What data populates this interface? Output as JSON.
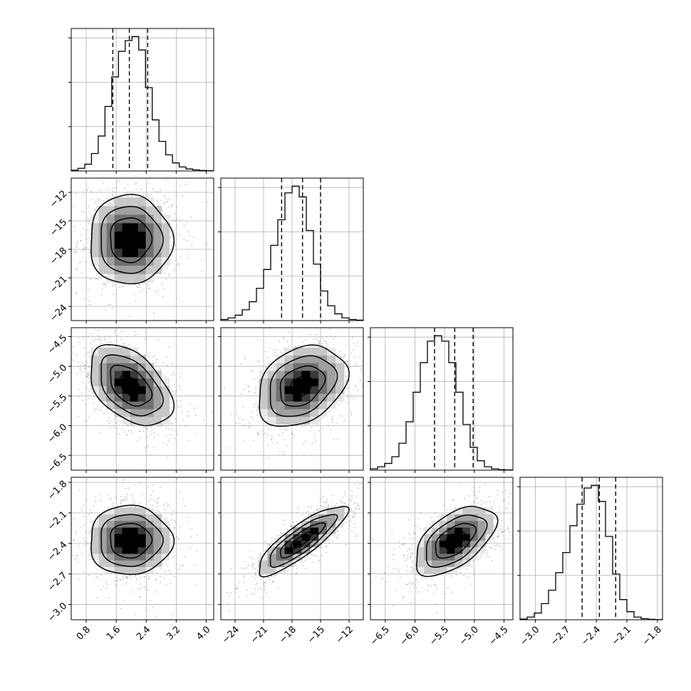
{
  "chart_data": [
    {
      "type": "histogram",
      "param": "p0",
      "xlim": [
        0.4,
        4.2
      ],
      "ylim": [
        0,
        1.06
      ],
      "grid": true,
      "x_ticks": [
        {
          "label": "0.8",
          "value": 0.8
        },
        {
          "label": "1.6",
          "value": 1.6
        },
        {
          "label": "2.4",
          "value": 2.4
        },
        {
          "label": "3.2",
          "value": 3.2
        },
        {
          "label": "4.0",
          "value": 4.0
        }
      ],
      "quantile_lines": [
        1.51,
        1.95,
        2.44
      ],
      "bins": {
        "start": 0.4,
        "width": 0.18,
        "counts": [
          0.005,
          0.02,
          0.05,
          0.13,
          0.26,
          0.48,
          0.7,
          0.89,
          0.97,
          1.0,
          0.9,
          0.62,
          0.38,
          0.22,
          0.12,
          0.06,
          0.03,
          0.015,
          0.008,
          0.004,
          0.002
        ]
      }
    },
    {
      "type": "histogram",
      "param": "p1",
      "xlim": [
        -25.5,
        -10.5
      ],
      "ylim": [
        0,
        1.06
      ],
      "grid": true,
      "x_ticks": [
        {
          "label": "−24",
          "value": -24
        },
        {
          "label": "−21",
          "value": -21
        },
        {
          "label": "−18",
          "value": -18
        },
        {
          "label": "−15",
          "value": -15
        },
        {
          "label": "−12",
          "value": -12
        }
      ],
      "quantile_lines": [
        -19.1,
        -16.9,
        -15.0
      ],
      "bins": {
        "start": -25.5,
        "width": 0.75,
        "counts": [
          0.008,
          0.02,
          0.04,
          0.08,
          0.14,
          0.24,
          0.38,
          0.56,
          0.75,
          0.95,
          1.0,
          0.92,
          0.67,
          0.42,
          0.22,
          0.11,
          0.05,
          0.02,
          0.008,
          0.003
        ]
      }
    },
    {
      "type": "histogram",
      "param": "p2",
      "xlim": [
        -6.75,
        -4.35
      ],
      "ylim": [
        0,
        1.06
      ],
      "grid": true,
      "x_ticks": [
        {
          "label": "−6.5",
          "value": -6.5
        },
        {
          "label": "−6.0",
          "value": -6.0
        },
        {
          "label": "−5.5",
          "value": -5.5
        },
        {
          "label": "−5.0",
          "value": -5.0
        },
        {
          "label": "−4.5",
          "value": -4.5
        }
      ],
      "quantile_lines": [
        -5.67,
        -5.33,
        -5.02
      ],
      "bins": {
        "start": -6.75,
        "width": 0.12,
        "counts": [
          0.01,
          0.025,
          0.05,
          0.1,
          0.2,
          0.36,
          0.58,
          0.8,
          0.96,
          1.0,
          0.96,
          0.8,
          0.58,
          0.34,
          0.17,
          0.07,
          0.025,
          0.01,
          0.004,
          0.002
        ]
      }
    },
    {
      "type": "histogram",
      "param": "p3",
      "xlim": [
        -3.15,
        -1.75
      ],
      "ylim": [
        0,
        1.06
      ],
      "grid": true,
      "x_ticks": [
        {
          "label": "−3.0",
          "value": -3.0
        },
        {
          "label": "−2.7",
          "value": -2.7
        },
        {
          "label": "−2.4",
          "value": -2.4
        },
        {
          "label": "−2.1",
          "value": -2.1
        },
        {
          "label": "−1.8",
          "value": -1.8
        }
      ],
      "quantile_lines": [
        -2.54,
        -2.37,
        -2.21
      ],
      "bins": {
        "start": -3.15,
        "width": 0.07,
        "counts": [
          0.005,
          0.02,
          0.05,
          0.12,
          0.22,
          0.35,
          0.5,
          0.7,
          0.86,
          0.98,
          1.0,
          0.88,
          0.62,
          0.34,
          0.15,
          0.06,
          0.02,
          0.008,
          0.003,
          0.001
        ]
      }
    },
    {
      "type": "scatter+contour",
      "x_param": "p0",
      "y_param": "p1",
      "xlim": [
        0.4,
        4.2
      ],
      "ylim": [
        -25.5,
        -10.5
      ],
      "grid": true,
      "y_ticks": [
        {
          "label": "−12",
          "value": -12
        },
        {
          "label": "−15",
          "value": -15
        },
        {
          "label": "−18",
          "value": -18
        },
        {
          "label": "−21",
          "value": -21
        },
        {
          "label": "−24",
          "value": -24
        }
      ],
      "mean": [
        1.97,
        -17.0
      ],
      "sd": [
        0.55,
        2.35
      ],
      "corr": 0.0
    },
    {
      "type": "scatter+contour",
      "x_param": "p0",
      "y_param": "p2",
      "xlim": [
        0.4,
        4.2
      ],
      "ylim": [
        -6.75,
        -4.35
      ],
      "grid": true,
      "y_ticks": [
        {
          "label": "−4.5",
          "value": -4.5
        },
        {
          "label": "−5.0",
          "value": -5.0
        },
        {
          "label": "−5.5",
          "value": -5.5
        },
        {
          "label": "−6.0",
          "value": -6.0
        },
        {
          "label": "−6.5",
          "value": -6.5
        }
      ],
      "mean": [
        1.97,
        -5.33
      ],
      "sd": [
        0.55,
        0.34
      ],
      "corr": -0.45
    },
    {
      "type": "scatter+contour",
      "x_param": "p1",
      "y_param": "p2",
      "xlim": [
        -25.5,
        -10.5
      ],
      "ylim": [
        -6.75,
        -4.35
      ],
      "grid": true,
      "mean": [
        -17.0,
        -5.33
      ],
      "sd": [
        2.35,
        0.34
      ],
      "corr": 0.3
    },
    {
      "type": "scatter+contour",
      "x_param": "p0",
      "y_param": "p3",
      "xlim": [
        0.4,
        4.2
      ],
      "ylim": [
        -3.15,
        -1.75
      ],
      "grid": true,
      "y_ticks": [
        {
          "label": "−1.8",
          "value": -1.8
        },
        {
          "label": "−2.1",
          "value": -2.1
        },
        {
          "label": "−2.4",
          "value": -2.4
        },
        {
          "label": "−2.7",
          "value": -2.7
        },
        {
          "label": "−3.0",
          "value": -3.0
        }
      ],
      "mean": [
        1.97,
        -2.37
      ],
      "sd": [
        0.55,
        0.17
      ],
      "corr": 0.0
    },
    {
      "type": "scatter+contour",
      "x_param": "p1",
      "y_param": "p3",
      "xlim": [
        -25.5,
        -10.5
      ],
      "ylim": [
        -3.15,
        -1.75
      ],
      "grid": true,
      "mean": [
        -17.0,
        -2.37
      ],
      "sd": [
        2.35,
        0.17
      ],
      "corr": 0.85
    },
    {
      "type": "scatter+contour",
      "x_param": "p2",
      "y_param": "p3",
      "xlim": [
        -6.75,
        -4.35
      ],
      "ylim": [
        -3.15,
        -1.75
      ],
      "grid": true,
      "mean": [
        -5.33,
        -2.37
      ],
      "sd": [
        0.34,
        0.17
      ],
      "corr": 0.55
    }
  ],
  "style": {
    "line_color": "#000000",
    "grid_color": "#b0b0b0",
    "scatter_color": "#777777",
    "density_levels": [
      "#e8e8e8",
      "#c8c8c8",
      "#a0a0a0",
      "#707070",
      "#3a3a3a",
      "#000000"
    ]
  }
}
